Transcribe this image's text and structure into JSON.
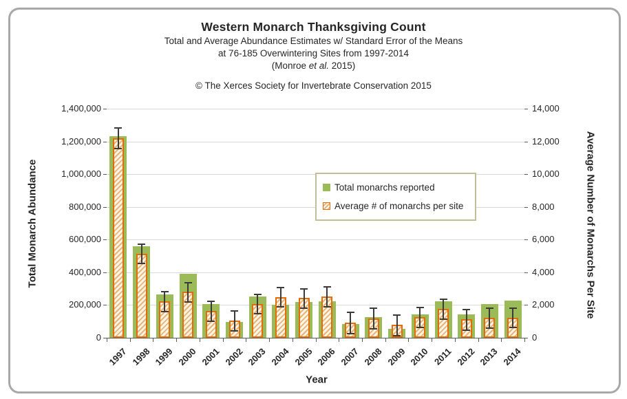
{
  "header": {
    "title": "Western Monarch Thanksgiving Count",
    "subtitle_line1": "Total and Average Abundance Estimates w/ Standard Error of the Means",
    "subtitle_line2": "at 76-185 Overwintering Sites from 1997-2014",
    "attribution": {
      "prefix": "(Monroe ",
      "italic": "et al.",
      "suffix": " 2015)"
    },
    "copyright": "© The Xerces Society for Invertebrate Conservation 2015"
  },
  "legend": {
    "items": [
      {
        "label": "Total monarchs reported",
        "swatch": "solid-green"
      },
      {
        "label": "Average # of monarchs per site",
        "swatch": "orange-hatch"
      }
    ]
  },
  "axes": {
    "left": {
      "title": "Total Monarch Abundance"
    },
    "right": {
      "title": "Average Number of Monarchs Per Site"
    },
    "x": {
      "title": "Year"
    }
  },
  "colors": {
    "total_bar": "#9bbb59",
    "average_border": "#e36c09",
    "average_hatch": "#eab377",
    "error_bar": "#3a3a3a",
    "gridline": "#d9d9d9",
    "axis_line": "#595959",
    "legend_border": "#c4bd97",
    "frame_border": "#a8a8a8"
  },
  "chart_data": {
    "type": "bar",
    "title": "Western Monarch Thanksgiving Count",
    "xlabel": "Year",
    "ylabel_left": "Total Monarch Abundance",
    "ylabel_right": "Average Number of Monarchs Per Site",
    "categories": [
      "1997",
      "1998",
      "1999",
      "2000",
      "2001",
      "2002",
      "2003",
      "2004",
      "2005",
      "2006",
      "2007",
      "2008",
      "2009",
      "2010",
      "2011",
      "2012",
      "2013",
      "2014"
    ],
    "series": [
      {
        "name": "Total monarchs reported",
        "axis": "left",
        "values": [
          1230000,
          560000,
          267000,
          390000,
          208000,
          99000,
          252000,
          201000,
          218000,
          221000,
          83000,
          126000,
          56000,
          143000,
          221000,
          142000,
          207000,
          228000
        ]
      },
      {
        "name": "Average # of monarchs per site",
        "axis": "right",
        "values": [
          12200,
          5150,
          2250,
          2800,
          1660,
          1050,
          2080,
          2500,
          2420,
          2530,
          920,
          1200,
          790,
          1270,
          1760,
          1120,
          1230,
          1230
        ],
        "standard_error": [
          650,
          600,
          630,
          625,
          630,
          630,
          620,
          625,
          615,
          640,
          660,
          645,
          650,
          645,
          630,
          645,
          640,
          610
        ]
      }
    ],
    "ylim_left": [
      0,
      1400000
    ],
    "ytick_step_left": 200000,
    "ylim_right": [
      0,
      14000
    ],
    "ytick_step_right": 2000,
    "grid": true,
    "legend_position": "inside-upper-right"
  }
}
